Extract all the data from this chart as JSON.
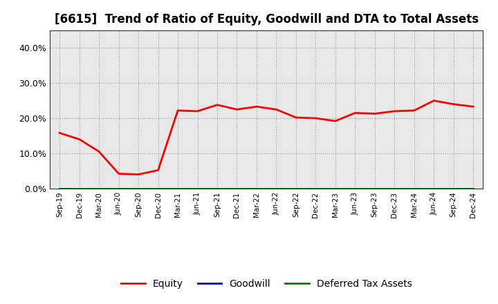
{
  "title": "[6615]  Trend of Ratio of Equity, Goodwill and DTA to Total Assets",
  "x_labels": [
    "Sep-19",
    "Dec-19",
    "Mar-20",
    "Jun-20",
    "Sep-20",
    "Dec-20",
    "Mar-21",
    "Jun-21",
    "Sep-21",
    "Dec-21",
    "Mar-22",
    "Jun-22",
    "Sep-22",
    "Dec-22",
    "Mar-23",
    "Jun-23",
    "Sep-23",
    "Dec-23",
    "Mar-24",
    "Jun-24",
    "Sep-24",
    "Dec-24"
  ],
  "equity": [
    15.8,
    14.0,
    10.5,
    4.2,
    4.0,
    5.2,
    22.2,
    22.0,
    23.8,
    22.5,
    23.3,
    22.5,
    20.2,
    20.0,
    19.2,
    21.5,
    21.3,
    22.0,
    22.2,
    25.0,
    24.0,
    23.3
  ],
  "goodwill": [
    0,
    0,
    0,
    0,
    0,
    0,
    0,
    0,
    0,
    0,
    0,
    0,
    0,
    0,
    0,
    0,
    0,
    0,
    0,
    0,
    0,
    0
  ],
  "dta": [
    0,
    0,
    0,
    0,
    0,
    0,
    0,
    0,
    0,
    0,
    0,
    0,
    0,
    0,
    0,
    0,
    0,
    0,
    0,
    0,
    0,
    0
  ],
  "equity_color": "#ff0000",
  "goodwill_color": "#0000cc",
  "dta_color": "#008000",
  "ylim": [
    0,
    45
  ],
  "yticks": [
    0,
    10,
    20,
    30,
    40
  ],
  "ytick_labels": [
    "0.0%",
    "10.0%",
    "20.0%",
    "30.0%",
    "40.0%"
  ],
  "background_color": "#ffffff",
  "plot_bg_color": "#e8e8e8",
  "grid_color": "#888888",
  "title_fontsize": 12,
  "legend_labels": [
    "Equity",
    "Goodwill",
    "Deferred Tax Assets"
  ]
}
